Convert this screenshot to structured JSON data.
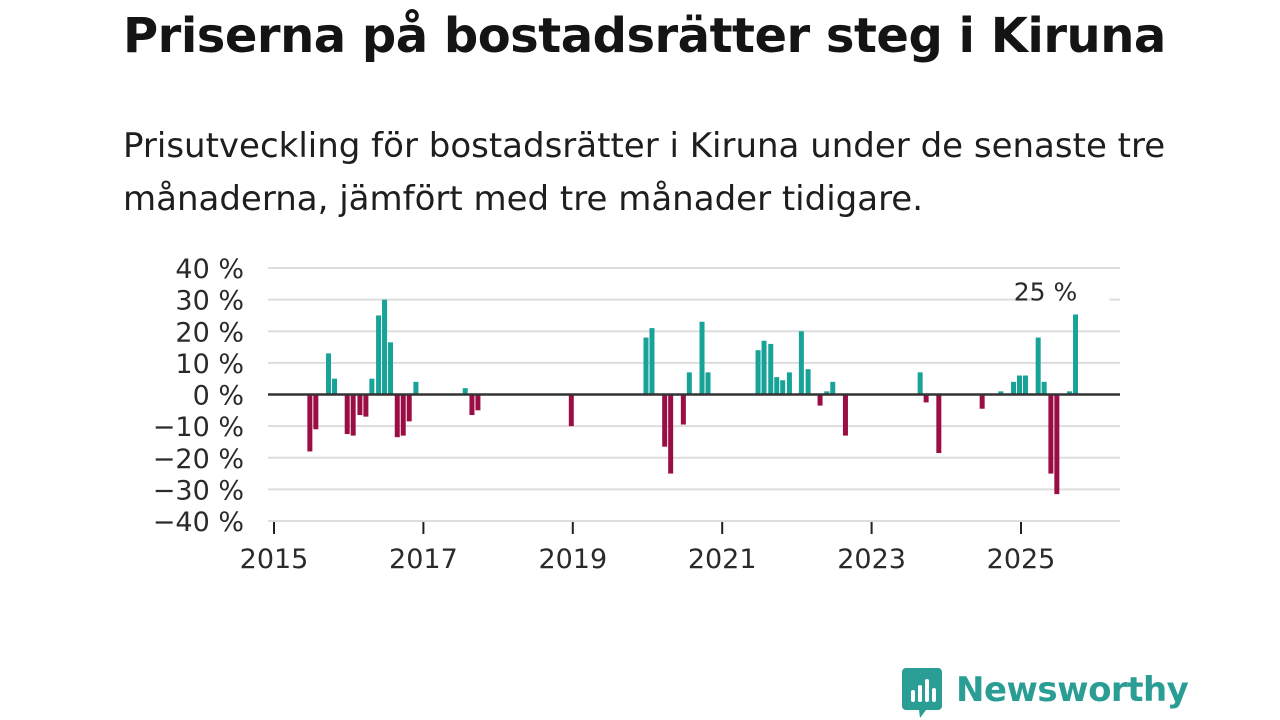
{
  "title": "Priserna på bostadsrätter steg i Kiruna",
  "subtitle": "Prisutveckling för bostadsrätter i Kiruna under de senaste tre månaderna, jämfört med tre månader tidigare.",
  "brand": {
    "name": "Newsworthy",
    "color": "#2a9d94"
  },
  "colors": {
    "positive": "#17a398",
    "negative": "#9b0e45",
    "grid": "#dddddd",
    "zero_line": "#333333"
  },
  "chart_data": {
    "type": "bar",
    "ylim": [
      -40,
      40
    ],
    "y_ticks": [
      40,
      30,
      20,
      10,
      0,
      -10,
      -20,
      -30,
      -40
    ],
    "y_tick_labels": [
      "40 %",
      "30 %",
      "20 %",
      "10 %",
      "0 %",
      "−10 %",
      "−20 %",
      "−30 %",
      "−40 %"
    ],
    "xlim": [
      2015,
      2026.3
    ],
    "x_ticks": [
      2015,
      2017,
      2019,
      2021,
      2023,
      2025
    ],
    "x_tick_labels": [
      "2015",
      "2017",
      "2019",
      "2021",
      "2023",
      "2025"
    ],
    "xlabel": "",
    "ylabel": "",
    "bars": [
      {
        "t": 2015.48,
        "v": -18
      },
      {
        "t": 2015.56,
        "v": -11
      },
      {
        "t": 2015.73,
        "v": 13
      },
      {
        "t": 2015.81,
        "v": 5
      },
      {
        "t": 2015.98,
        "v": -12.5
      },
      {
        "t": 2016.06,
        "v": -13
      },
      {
        "t": 2016.15,
        "v": -6.5
      },
      {
        "t": 2016.23,
        "v": -7
      },
      {
        "t": 2016.31,
        "v": 5
      },
      {
        "t": 2016.4,
        "v": 25
      },
      {
        "t": 2016.48,
        "v": 30
      },
      {
        "t": 2016.56,
        "v": 16.5
      },
      {
        "t": 2016.65,
        "v": -13.5
      },
      {
        "t": 2016.73,
        "v": -13
      },
      {
        "t": 2016.81,
        "v": -8.5
      },
      {
        "t": 2016.9,
        "v": 4
      },
      {
        "t": 2017.56,
        "v": 2
      },
      {
        "t": 2017.65,
        "v": -6.5
      },
      {
        "t": 2017.73,
        "v": -5
      },
      {
        "t": 2018.98,
        "v": -10
      },
      {
        "t": 2019.98,
        "v": 18
      },
      {
        "t": 2020.06,
        "v": 21
      },
      {
        "t": 2020.23,
        "v": -16.5
      },
      {
        "t": 2020.31,
        "v": -25
      },
      {
        "t": 2020.48,
        "v": -9.5
      },
      {
        "t": 2020.56,
        "v": 7
      },
      {
        "t": 2020.73,
        "v": 23
      },
      {
        "t": 2020.81,
        "v": 7
      },
      {
        "t": 2021.48,
        "v": 14
      },
      {
        "t": 2021.56,
        "v": 17
      },
      {
        "t": 2021.65,
        "v": 16
      },
      {
        "t": 2021.73,
        "v": 5.5
      },
      {
        "t": 2021.81,
        "v": 4.5
      },
      {
        "t": 2021.9,
        "v": 7
      },
      {
        "t": 2022.06,
        "v": 20
      },
      {
        "t": 2022.15,
        "v": 8
      },
      {
        "t": 2022.31,
        "v": -3.5
      },
      {
        "t": 2022.4,
        "v": 1
      },
      {
        "t": 2022.48,
        "v": 4
      },
      {
        "t": 2022.65,
        "v": -13
      },
      {
        "t": 2023.65,
        "v": 7
      },
      {
        "t": 2023.73,
        "v": -2.5
      },
      {
        "t": 2023.9,
        "v": -18.5
      },
      {
        "t": 2024.48,
        "v": -4.5
      },
      {
        "t": 2024.73,
        "v": 1
      },
      {
        "t": 2024.9,
        "v": 4
      },
      {
        "t": 2024.98,
        "v": 6
      },
      {
        "t": 2025.06,
        "v": 6
      },
      {
        "t": 2025.23,
        "v": 18
      },
      {
        "t": 2025.31,
        "v": 4
      },
      {
        "t": 2025.4,
        "v": -25
      },
      {
        "t": 2025.48,
        "v": -31.5
      },
      {
        "t": 2025.65,
        "v": 1
      },
      {
        "t": 2025.73,
        "v": 25.3
      }
    ],
    "annotation": {
      "t": 2025.73,
      "value": 25.3,
      "label": "25 %"
    }
  }
}
